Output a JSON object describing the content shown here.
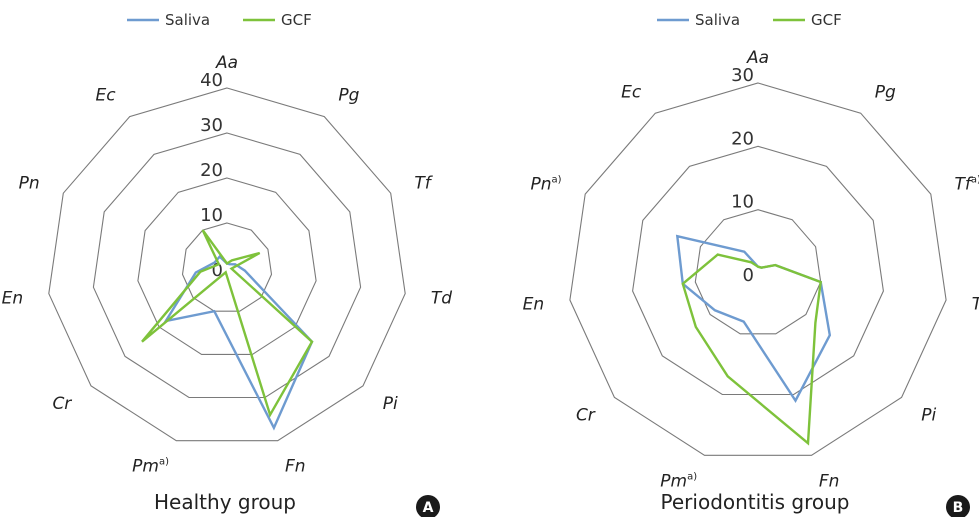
{
  "chart_data": [
    {
      "type": "radar",
      "caption": "Healthy group",
      "badge": "A",
      "axes": [
        {
          "name": "Aa",
          "sup": ""
        },
        {
          "name": "Pg",
          "sup": ""
        },
        {
          "name": "Tf",
          "sup": ""
        },
        {
          "name": "Td",
          "sup": ""
        },
        {
          "name": "Pi",
          "sup": ""
        },
        {
          "name": "Fn",
          "sup": ""
        },
        {
          "name": "Pm",
          "sup": "a)"
        },
        {
          "name": "Cr",
          "sup": ""
        },
        {
          "name": "En",
          "sup": ""
        },
        {
          "name": "Pn",
          "sup": ""
        },
        {
          "name": "Ec",
          "sup": ""
        }
      ],
      "ticks": [
        0,
        10,
        20,
        30,
        40
      ],
      "rmax": 40,
      "legend": [
        {
          "name": "Saliva",
          "color": "#6e9bd0"
        },
        {
          "name": "GCF",
          "color": "#7ec23b"
        }
      ],
      "series": [
        {
          "name": "Saliva",
          "color": "#6e9bd0",
          "values": [
            1,
            1,
            2,
            4,
            25,
            37,
            10,
            18,
            7,
            3,
            3
          ]
        },
        {
          "name": "GCF",
          "color": "#7ec23b",
          "values": [
            1,
            2,
            8,
            1,
            25,
            34,
            1,
            25,
            6,
            2,
            10
          ]
        }
      ]
    },
    {
      "type": "radar",
      "caption": "Periodontitis group",
      "badge": "B",
      "axes": [
        {
          "name": "Aa",
          "sup": ""
        },
        {
          "name": "Pg",
          "sup": ""
        },
        {
          "name": "Tf",
          "sup": "a)"
        },
        {
          "name": "Td",
          "sup": ""
        },
        {
          "name": "Pi",
          "sup": ""
        },
        {
          "name": "Fn",
          "sup": ""
        },
        {
          "name": "Pm",
          "sup": "a)"
        },
        {
          "name": "Cr",
          "sup": ""
        },
        {
          "name": "En",
          "sup": ""
        },
        {
          "name": "Pn",
          "sup": "a)"
        },
        {
          "name": "Ec",
          "sup": ""
        }
      ],
      "ticks": [
        0,
        10,
        20,
        30
      ],
      "rmax": 30,
      "legend": [
        {
          "name": "Saliva",
          "color": "#6e9bd0"
        },
        {
          "name": "GCF",
          "color": "#7ec23b"
        }
      ],
      "series": [
        {
          "name": "Saliva",
          "color": "#6e9bd0",
          "values": [
            1,
            1,
            3,
            10,
            15,
            21,
            8,
            9,
            12,
            14,
            4
          ]
        },
        {
          "name": "GCF",
          "color": "#7ec23b",
          "values": [
            1,
            1,
            3,
            10,
            12,
            28,
            17,
            13,
            12,
            7,
            2
          ]
        }
      ]
    }
  ]
}
